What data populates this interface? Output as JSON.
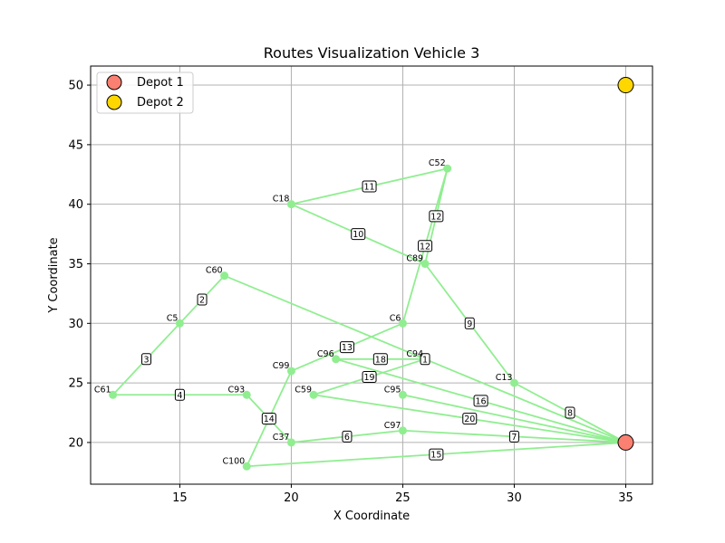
{
  "chart_data": {
    "type": "scatter",
    "title": "Routes Visualization Vehicle 3",
    "xlabel": "X Coordinate",
    "ylabel": "Y Coordinate",
    "xlim": [
      11,
      36.2
    ],
    "ylim": [
      16.5,
      51.6
    ],
    "xticks": [
      15,
      20,
      25,
      30,
      35
    ],
    "yticks": [
      20,
      25,
      30,
      35,
      40,
      45,
      50
    ],
    "grid": true,
    "legend_position": "top-left",
    "colors": {
      "route": "#90ee90",
      "depot1": "#fa8072",
      "depot2": "#ffd700"
    },
    "depots": [
      {
        "name": "Depot 1",
        "x": 35,
        "y": 20
      },
      {
        "name": "Depot 2",
        "x": 35,
        "y": 50
      }
    ],
    "customers": [
      {
        "label": "C52",
        "x": 27,
        "y": 43
      },
      {
        "label": "C18",
        "x": 20,
        "y": 40
      },
      {
        "label": "C89",
        "x": 26,
        "y": 35
      },
      {
        "label": "C60",
        "x": 17,
        "y": 34
      },
      {
        "label": "C5",
        "x": 15,
        "y": 30
      },
      {
        "label": "C6",
        "x": 25,
        "y": 30
      },
      {
        "label": "C96",
        "x": 22,
        "y": 27
      },
      {
        "label": "C94",
        "x": 26,
        "y": 27
      },
      {
        "label": "C99",
        "x": 20,
        "y": 26
      },
      {
        "label": "C13",
        "x": 30,
        "y": 25
      },
      {
        "label": "C61",
        "x": 12,
        "y": 24
      },
      {
        "label": "C93",
        "x": 18,
        "y": 24
      },
      {
        "label": "C59",
        "x": 21,
        "y": 24
      },
      {
        "label": "C95",
        "x": 25,
        "y": 24
      },
      {
        "label": "C97",
        "x": 25,
        "y": 21
      },
      {
        "label": "C37",
        "x": 20,
        "y": 20
      },
      {
        "label": "C100",
        "x": 18,
        "y": 18
      }
    ],
    "edges": [
      {
        "step": "1",
        "from": "D1",
        "to": "C60"
      },
      {
        "step": "2",
        "from": "C60",
        "to": "C5"
      },
      {
        "step": "3",
        "from": "C5",
        "to": "C61"
      },
      {
        "step": "4",
        "from": "C61",
        "to": "C93"
      },
      {
        "step": "5",
        "from": "C93",
        "to": "C37"
      },
      {
        "step": "6",
        "from": "C37",
        "to": "C97"
      },
      {
        "step": "7",
        "from": "C97",
        "to": "D1"
      },
      {
        "step": "8",
        "from": "D1",
        "to": "C13"
      },
      {
        "step": "9",
        "from": "C13",
        "to": "C89"
      },
      {
        "step": "10",
        "from": "C89",
        "to": "C18"
      },
      {
        "step": "11",
        "from": "C18",
        "to": "C52"
      },
      {
        "step": "12",
        "from": "C52",
        "to": "C89"
      },
      {
        "step": "12",
        "from": "C52",
        "to": "C6"
      },
      {
        "step": "13",
        "from": "C6",
        "to": "C99"
      },
      {
        "step": "14",
        "from": "C99",
        "to": "C100"
      },
      {
        "step": "15",
        "from": "C100",
        "to": "D1"
      },
      {
        "step": "16",
        "from": "D1",
        "to": "C96"
      },
      {
        "step": "18",
        "from": "C96",
        "to": "C94"
      },
      {
        "step": "19",
        "from": "C94",
        "to": "C59"
      },
      {
        "step": "20",
        "from": "C59",
        "to": "D1"
      },
      {
        "step": "",
        "from": "C95",
        "to": "D1"
      }
    ]
  }
}
